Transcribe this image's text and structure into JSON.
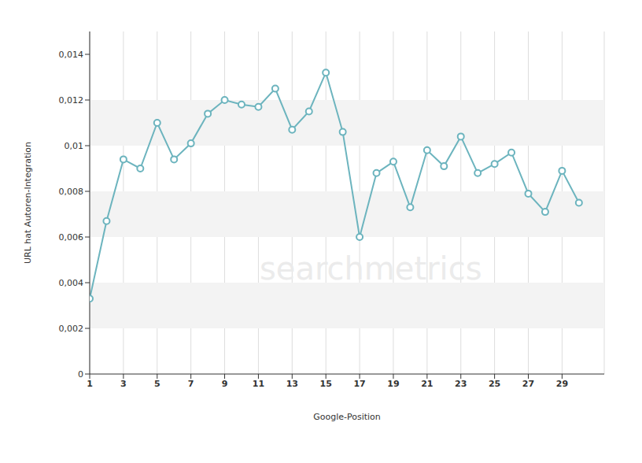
{
  "chart_data": {
    "type": "line",
    "watermark": "searchmetrics",
    "x_label": "Google-Position",
    "y_label": "URL hat Autoren-Integration",
    "x": [
      1,
      2,
      3,
      4,
      5,
      6,
      7,
      8,
      9,
      10,
      11,
      12,
      13,
      14,
      15,
      16,
      17,
      18,
      19,
      20,
      21,
      22,
      23,
      24,
      25,
      26,
      27,
      28,
      29,
      30
    ],
    "values": [
      0.0033,
      0.0067,
      0.0094,
      0.009,
      0.011,
      0.0094,
      0.0101,
      0.0114,
      0.012,
      0.0118,
      0.0117,
      0.0125,
      0.0107,
      0.0115,
      0.0132,
      0.0106,
      0.006,
      0.0088,
      0.0093,
      0.0073,
      0.0098,
      0.0091,
      0.0104,
      0.0088,
      0.0092,
      0.0097,
      0.0079,
      0.0071,
      0.0089,
      0.0075
    ],
    "color": "#6cb4be",
    "marker": "circle",
    "xlim": [
      1,
      31.5
    ],
    "xticks": [
      1,
      3,
      5,
      7,
      9,
      11,
      13,
      15,
      17,
      19,
      21,
      23,
      25,
      27,
      29
    ],
    "ylim": [
      0,
      0.015
    ],
    "yticks": [
      0,
      {
        "value": 0.002,
        "label": "0,002"
      },
      {
        "value": 0.004,
        "label": "0,004"
      },
      {
        "value": 0.006,
        "label": "0,006"
      },
      {
        "value": 0.008,
        "label": "0,008"
      },
      {
        "value": 0.01,
        "label": "0,01"
      },
      {
        "value": 0.012,
        "label": "0,012"
      },
      {
        "value": 0.014,
        "label": "0,014"
      }
    ],
    "grid": true
  }
}
